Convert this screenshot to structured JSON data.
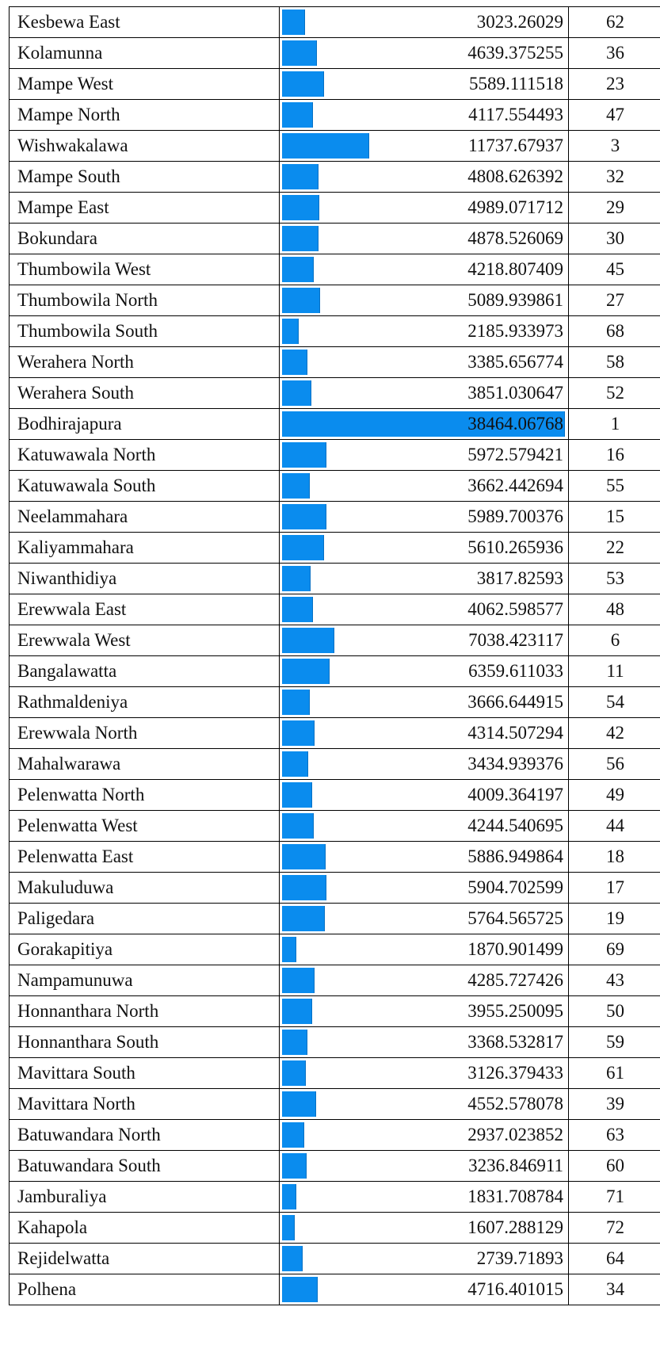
{
  "table": {
    "rows": [
      [
        "Kesbewa East",
        3023.26029,
        62
      ],
      [
        "Kolamunna",
        4639.375255,
        36
      ],
      [
        "Mampe West",
        5589.111518,
        23
      ],
      [
        "Mampe North",
        4117.554493,
        47
      ],
      [
        "Wishwakalawa",
        11737.67937,
        3
      ],
      [
        "Mampe South",
        4808.626392,
        32
      ],
      [
        "Mampe East",
        4989.071712,
        29
      ],
      [
        "Bokundara",
        4878.526069,
        30
      ],
      [
        "Thumbowila West",
        4218.807409,
        45
      ],
      [
        "Thumbowila North",
        5089.939861,
        27
      ],
      [
        "Thumbowila South",
        2185.933973,
        68
      ],
      [
        "Werahera North",
        3385.656774,
        58
      ],
      [
        "Werahera South",
        3851.030647,
        52
      ],
      [
        "Bodhirajapura",
        38464.06768,
        1
      ],
      [
        "Katuwawala North",
        5972.579421,
        16
      ],
      [
        "Katuwawala South",
        3662.442694,
        55
      ],
      [
        "Neelammahara",
        5989.700376,
        15
      ],
      [
        "Kaliyammahara",
        5610.265936,
        22
      ],
      [
        "Niwanthidiya",
        3817.82593,
        53
      ],
      [
        "Erewwala East",
        4062.598577,
        48
      ],
      [
        "Erewwala West",
        7038.423117,
        6
      ],
      [
        "Bangalawatta",
        6359.611033,
        11
      ],
      [
        "Rathmaldeniya",
        3666.644915,
        54
      ],
      [
        "Erewwala North",
        4314.507294,
        42
      ],
      [
        "Mahalwarawa",
        3434.939376,
        56
      ],
      [
        "Pelenwatta North",
        4009.364197,
        49
      ],
      [
        "Pelenwatta West",
        4244.540695,
        44
      ],
      [
        "Pelenwatta East",
        5886.949864,
        18
      ],
      [
        "Makuluduwa",
        5904.702599,
        17
      ],
      [
        "Paligedara",
        5764.565725,
        19
      ],
      [
        "Gorakapitiya",
        1870.901499,
        69
      ],
      [
        "Nampamunuwa",
        4285.727426,
        43
      ],
      [
        "Honnanthara North",
        3955.250095,
        50
      ],
      [
        "Honnanthara South",
        3368.532817,
        59
      ],
      [
        "Mavittara South",
        3126.379433,
        61
      ],
      [
        "Mavittara North",
        4552.578078,
        39
      ],
      [
        "Batuwandara North",
        2937.023852,
        63
      ],
      [
        "Batuwandara South",
        3236.846911,
        60
      ],
      [
        "Jamburaliya",
        1831.708784,
        71
      ],
      [
        "Kahapola",
        1607.288129,
        72
      ],
      [
        "Rejidelwatta",
        2739.71893,
        64
      ],
      [
        "Polhena",
        4716.401015,
        34
      ]
    ]
  }
}
